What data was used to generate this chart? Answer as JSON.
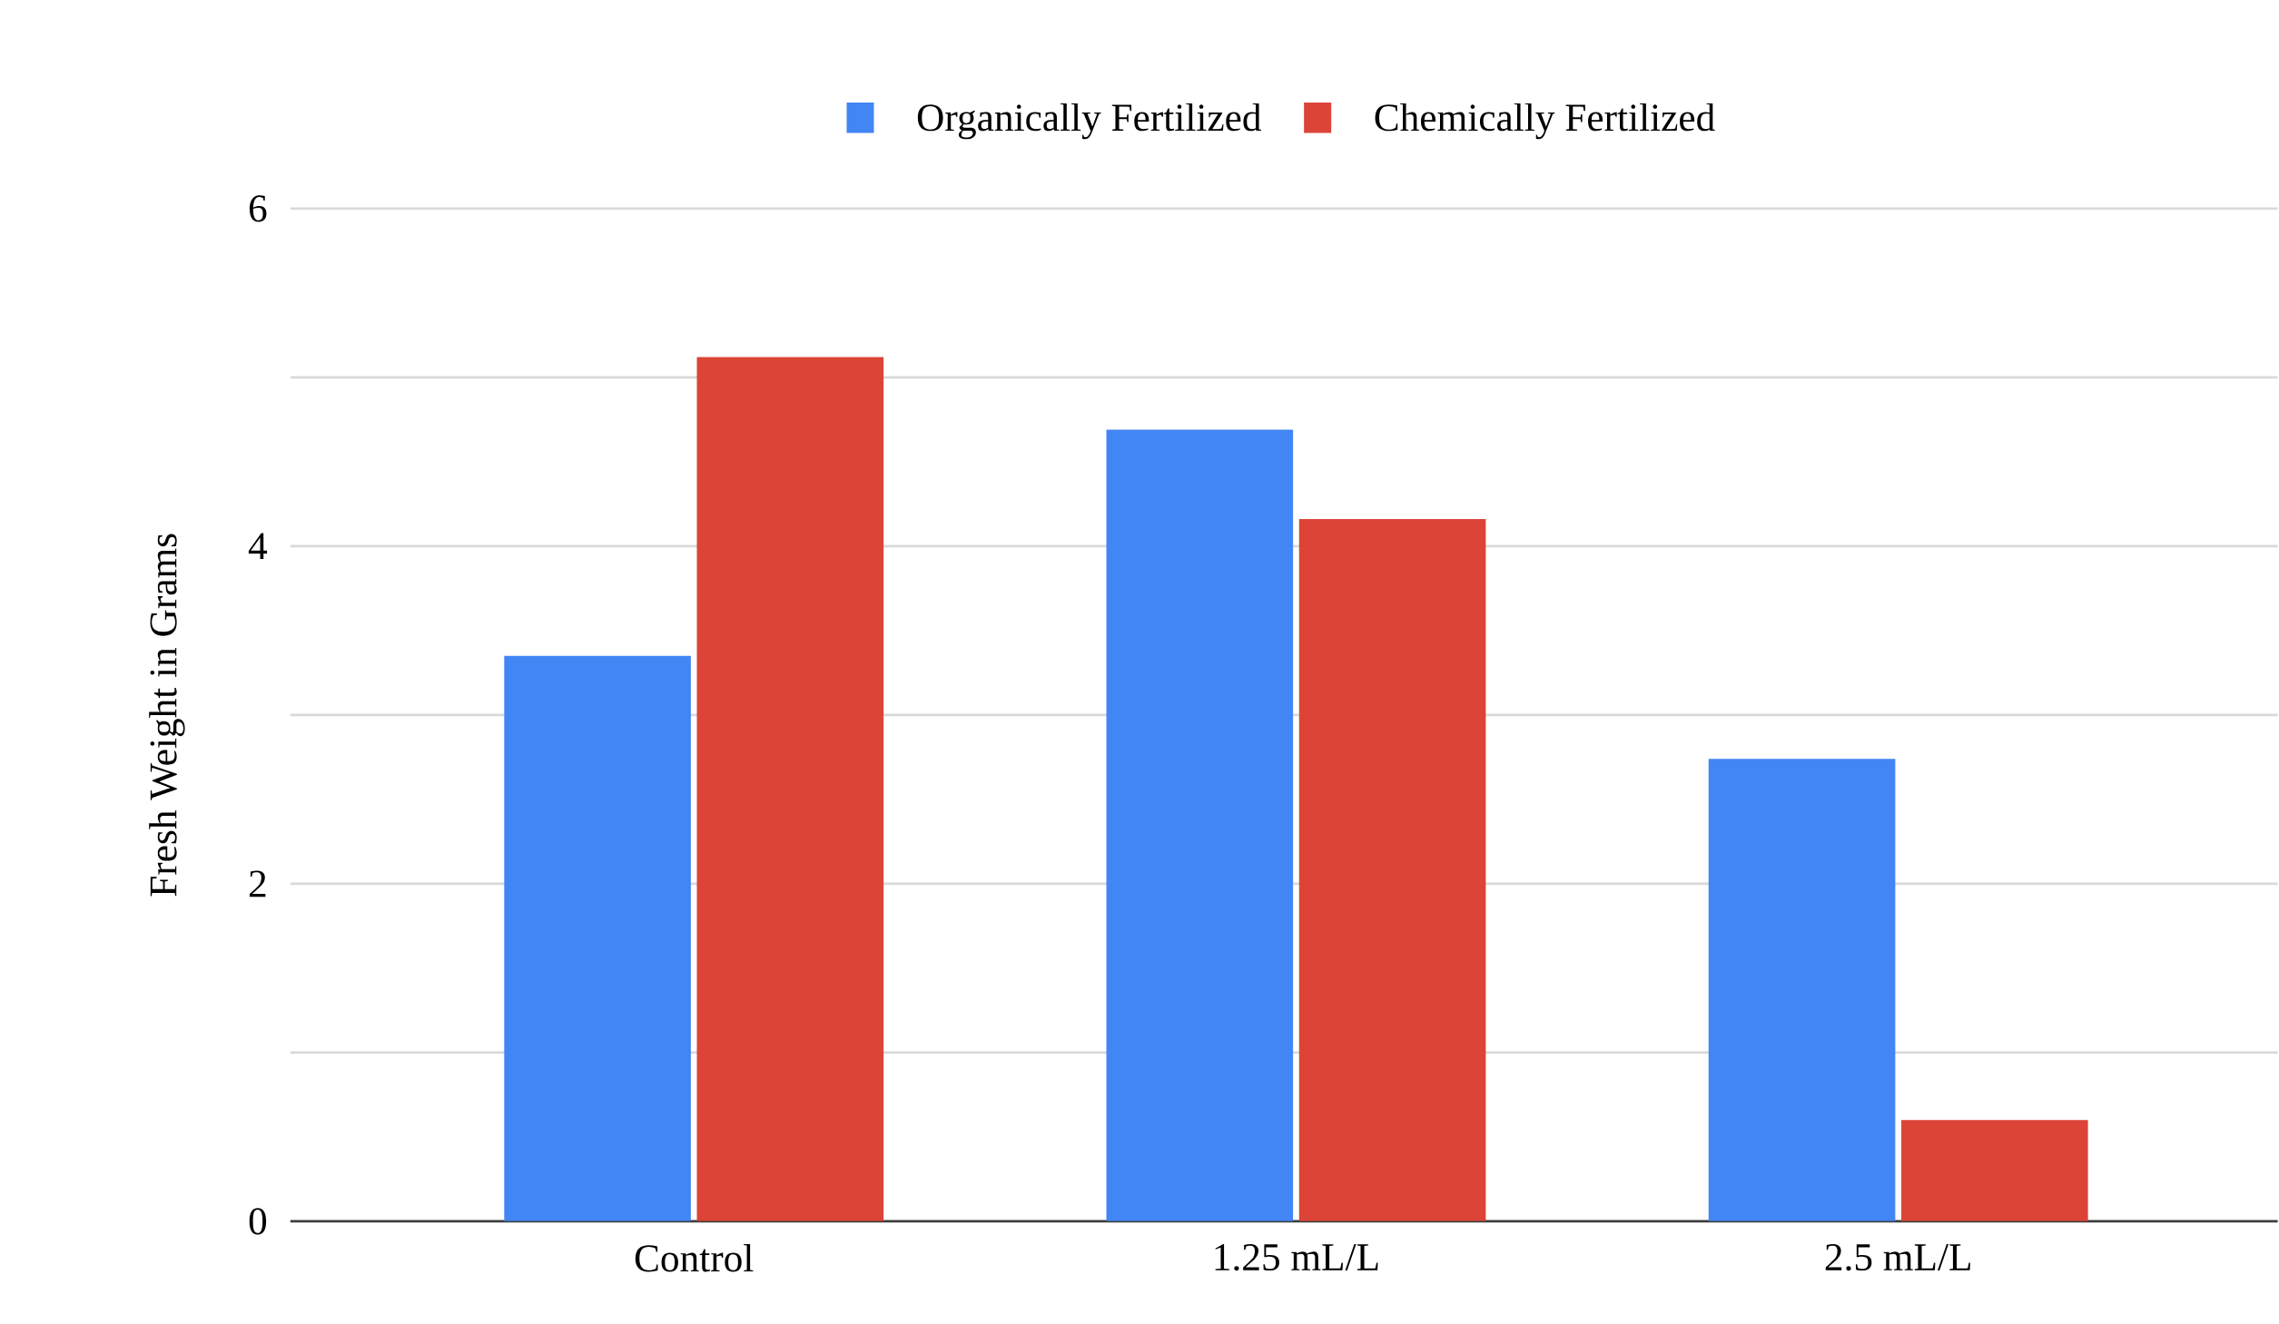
{
  "chart_data": {
    "type": "bar",
    "ylabel": "Fresh Weight in Grams",
    "categories": [
      "Control",
      "1.25 mL/L",
      "2.5 mL/L"
    ],
    "series": [
      {
        "name": "Organically Fertilized",
        "color": "#4285f4",
        "values": [
          3.35,
          4.69,
          2.74
        ]
      },
      {
        "name": "Chemically Fertilized",
        "color": "#db4437",
        "values": [
          5.12,
          4.16,
          0.6
        ]
      }
    ],
    "ylim": [
      0,
      6
    ],
    "yticks": [
      0,
      {
        "value": 1,
        "label": null
      },
      2,
      {
        "value": 3,
        "label": null
      },
      4,
      {
        "value": 5,
        "label": null
      },
      6
    ],
    "grid": "y",
    "legend": "top"
  }
}
